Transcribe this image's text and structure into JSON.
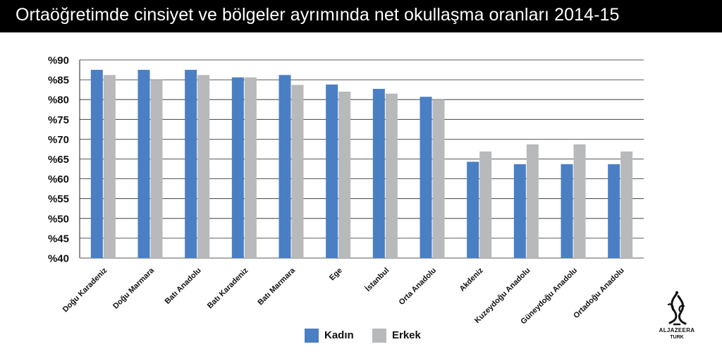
{
  "header": {
    "title": "Ortaöğretimde cinsiyet ve bölgeler ayrımında net okullaşma oranları 2014-15"
  },
  "colors": {
    "title_bar": "#000000",
    "kadin": "#4a7fc4",
    "erkek": "#b8b9bb",
    "grid": "#222222"
  },
  "chart_data": {
    "type": "bar",
    "title": "Ortaöğretimde cinsiyet ve bölgeler ayrımında net okullaşma oranları 2014-15",
    "categories": [
      "Doğu Karadeniz",
      "Doğu Marmara",
      "Batı Anadolu",
      "Batı Karadeniz",
      "Batı Marmara",
      "Ege",
      "İstanbul",
      "Orta Anadolu",
      "Akdeniz",
      "Kuzeydoğu Anadolu",
      "Güneydoğu Anadolu",
      "Ortadoğu Anadolu"
    ],
    "series": [
      {
        "name": "Kadın",
        "values": [
          87.5,
          87.5,
          87.5,
          85.6,
          86.2,
          83.8,
          82.7,
          80.7,
          64.3,
          63.7,
          63.7,
          63.7
        ]
      },
      {
        "name": "Erkek",
        "values": [
          86.2,
          85.0,
          86.2,
          85.6,
          83.7,
          82.0,
          81.5,
          80.0,
          66.9,
          68.7,
          68.7,
          66.9
        ]
      }
    ],
    "ylim": [
      40,
      90
    ],
    "yticks": [
      90,
      85,
      80,
      75,
      70,
      65,
      60,
      55,
      50,
      45,
      40
    ],
    "ytick_labels": [
      "%90",
      "%85",
      "%80",
      "%75",
      "%70",
      "%65",
      "%60",
      "%55",
      "%50",
      "%45",
      "%40"
    ],
    "grid": true,
    "legend_position": "bottom-center"
  },
  "legend": {
    "items": [
      "Kadın",
      "Erkek"
    ]
  },
  "logo": {
    "word1": "ALJAZEERA",
    "word2": "TURK"
  }
}
